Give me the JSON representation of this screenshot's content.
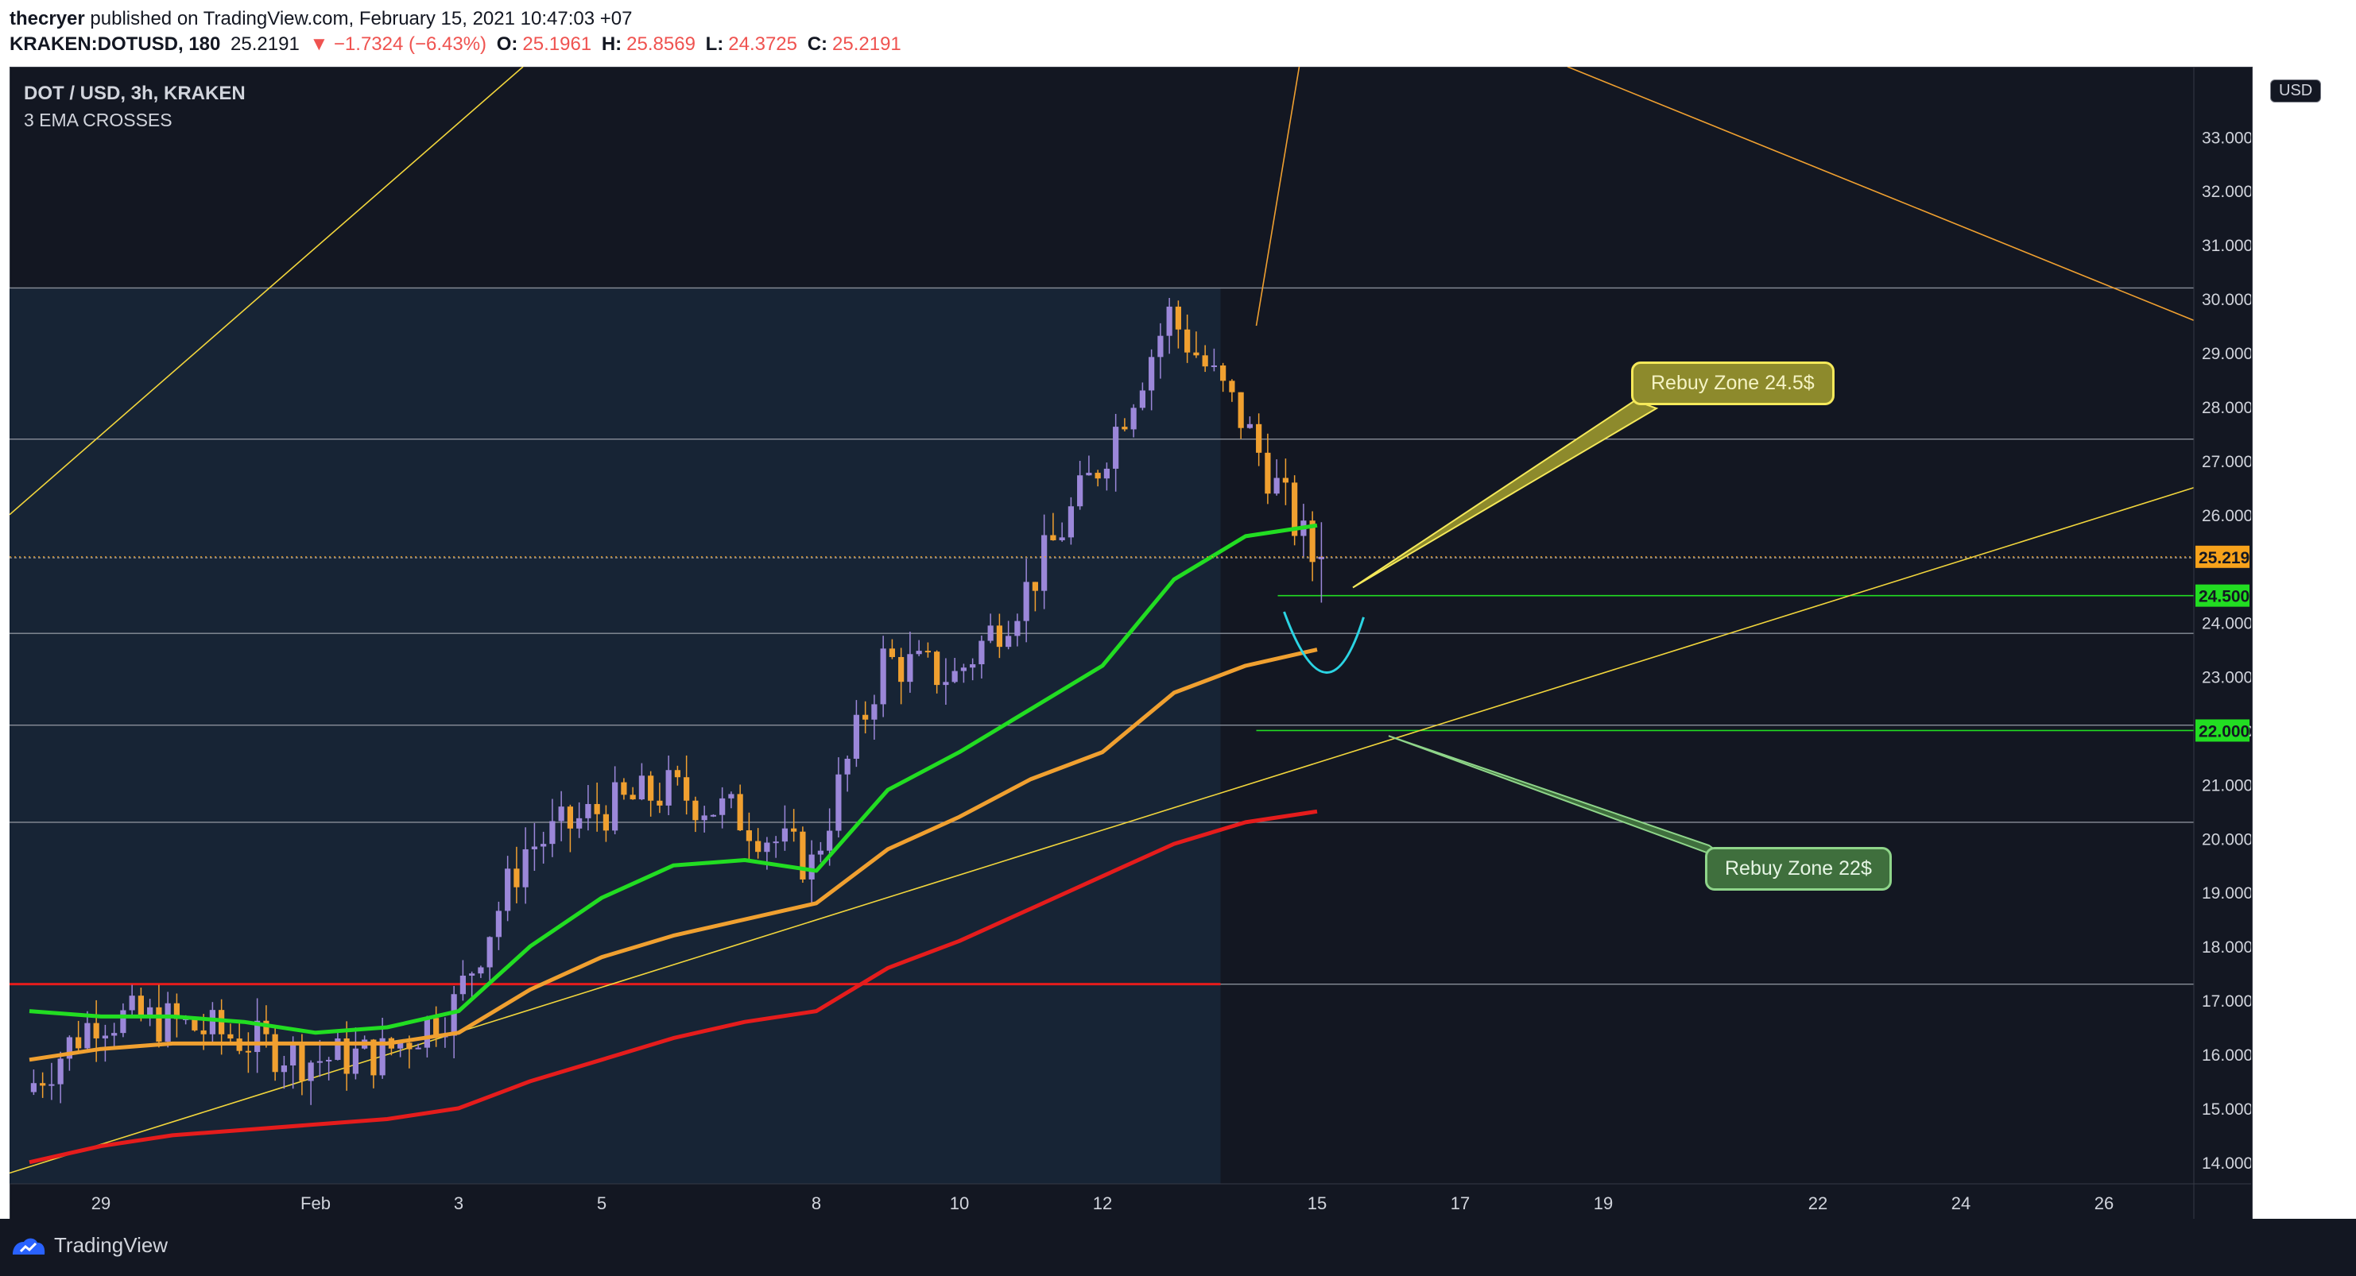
{
  "header": {
    "publisher": "thecryer",
    "published_text": "published on TradingView.com, February 15, 2021 10:47:03 +07",
    "symbol": "KRAKEN:DOTUSD, 180",
    "last": "25.2191",
    "change": "▼ −1.7324 (−6.43%)",
    "o_label": "O:",
    "o_val": "25.1961",
    "h_label": "H:",
    "h_val": "25.8569",
    "l_label": "L:",
    "l_val": "24.3725",
    "c_label": "C:",
    "c_val": "25.2191"
  },
  "legend": {
    "title": "DOT / USD, 3h, KRAKEN",
    "indicator": "3 EMA CROSSES"
  },
  "currency": "USD",
  "footer": {
    "brand": "TradingView"
  },
  "annotations": [
    {
      "text": "Rebuy Zone 24.5$",
      "target_price": 24.5
    },
    {
      "text": "Rebuy Zone 22$",
      "target_price": 22.0
    }
  ],
  "colors": {
    "background": "#131722",
    "bull": "#9b87d9",
    "bear": "#f0a030",
    "ema_fast": "#22dd22",
    "ema_mid": "#f0a030",
    "ema_slow": "#e51c1c",
    "trend_yellow": "#f2d63c",
    "trend_orange": "#f0a030",
    "hline": "#8a8f9a",
    "green_level": "#22dd22",
    "last_price": "#f7a21b"
  },
  "chart_data": {
    "type": "candlestick",
    "title": "DOT / USD, 3h, KRAKEN",
    "ylim": [
      13.6,
      34.3
    ],
    "yticks": [
      14,
      15,
      16,
      17,
      18,
      19,
      20,
      21,
      22,
      23,
      24,
      25,
      26,
      27,
      28,
      29,
      30,
      31,
      32,
      33
    ],
    "ytick_labels": [
      "14.0000",
      "15.0000",
      "16.0000",
      "17.0000",
      "18.0000",
      "19.0000",
      "20.0000",
      "21.0000",
      "22.0000",
      "23.0000",
      "24.0000",
      "",
      "26.0000",
      "27.0000",
      "28.0000",
      "29.0000",
      "30.0000",
      "31.0000",
      "32.0000",
      "33.0000"
    ],
    "xlim": [
      "2021-01-28T12:00",
      "2021-01-28T12:00"
    ],
    "x_start": "2021-01-28",
    "xtick_labels": [
      {
        "label": "29",
        "date": "2021-01-29"
      },
      {
        "label": "Feb",
        "date": "2021-02-01"
      },
      {
        "label": "3",
        "date": "2021-02-03"
      },
      {
        "label": "5",
        "date": "2021-02-05"
      },
      {
        "label": "8",
        "date": "2021-02-08"
      },
      {
        "label": "10",
        "date": "2021-02-10"
      },
      {
        "label": "12",
        "date": "2021-02-12"
      },
      {
        "label": "15",
        "date": "2021-02-15"
      },
      {
        "label": "17",
        "date": "2021-02-17"
      },
      {
        "label": "19",
        "date": "2021-02-19"
      },
      {
        "label": "22",
        "date": "2021-02-22"
      },
      {
        "label": "24",
        "date": "2021-02-24"
      },
      {
        "label": "26",
        "date": "2021-02-26"
      }
    ],
    "price_anchor": [
      {
        "date": "2021-01-28",
        "close": 15.3
      },
      {
        "date": "2021-01-29",
        "close": 16.7
      },
      {
        "date": "2021-01-30",
        "close": 16.6
      },
      {
        "date": "2021-01-31",
        "close": 16.3
      },
      {
        "date": "2021-02-01",
        "close": 15.9
      },
      {
        "date": "2021-02-02",
        "close": 16.0
      },
      {
        "date": "2021-02-03",
        "close": 16.9
      },
      {
        "date": "2021-02-04",
        "close": 19.8
      },
      {
        "date": "2021-02-05",
        "close": 20.5
      },
      {
        "date": "2021-02-06",
        "close": 20.9
      },
      {
        "date": "2021-02-07",
        "close": 20.4
      },
      {
        "date": "2021-02-08",
        "close": 19.5
      },
      {
        "date": "2021-02-09",
        "close": 23.3
      },
      {
        "date": "2021-02-10",
        "close": 23.0
      },
      {
        "date": "2021-02-11",
        "close": 24.6
      },
      {
        "date": "2021-02-12",
        "close": 26.9
      },
      {
        "date": "2021-02-13",
        "close": 29.7
      },
      {
        "date": "2021-02-14",
        "close": 27.8
      },
      {
        "date": "2021-02-15",
        "close": 25.2
      }
    ],
    "ema_fast": [
      [
        0,
        16.8
      ],
      [
        1,
        16.7
      ],
      [
        2,
        16.7
      ],
      [
        3,
        16.6
      ],
      [
        4,
        16.4
      ],
      [
        5,
        16.5
      ],
      [
        6,
        16.8
      ],
      [
        7,
        18.0
      ],
      [
        8,
        18.9
      ],
      [
        9,
        19.5
      ],
      [
        10,
        19.6
      ],
      [
        11,
        19.4
      ],
      [
        12,
        20.9
      ],
      [
        13,
        21.6
      ],
      [
        14,
        22.4
      ],
      [
        15,
        23.2
      ],
      [
        16,
        24.8
      ],
      [
        17,
        25.6
      ],
      [
        18,
        25.8
      ]
    ],
    "ema_mid": [
      [
        0,
        15.9
      ],
      [
        1,
        16.1
      ],
      [
        2,
        16.2
      ],
      [
        3,
        16.2
      ],
      [
        4,
        16.2
      ],
      [
        5,
        16.2
      ],
      [
        6,
        16.4
      ],
      [
        7,
        17.2
      ],
      [
        8,
        17.8
      ],
      [
        9,
        18.2
      ],
      [
        10,
        18.5
      ],
      [
        11,
        18.8
      ],
      [
        12,
        19.8
      ],
      [
        13,
        20.4
      ],
      [
        14,
        21.1
      ],
      [
        15,
        21.6
      ],
      [
        16,
        22.7
      ],
      [
        17,
        23.2
      ],
      [
        18,
        23.5
      ]
    ],
    "ema_slow": [
      [
        0,
        14.0
      ],
      [
        1,
        14.3
      ],
      [
        2,
        14.5
      ],
      [
        3,
        14.6
      ],
      [
        4,
        14.7
      ],
      [
        5,
        14.8
      ],
      [
        6,
        15.0
      ],
      [
        7,
        15.5
      ],
      [
        8,
        15.9
      ],
      [
        9,
        16.3
      ],
      [
        10,
        16.6
      ],
      [
        11,
        16.8
      ],
      [
        12,
        17.6
      ],
      [
        13,
        18.1
      ],
      [
        14,
        18.7
      ],
      [
        15,
        19.3
      ],
      [
        16,
        19.9
      ],
      [
        17,
        20.3
      ],
      [
        18,
        20.5
      ]
    ],
    "horizontal_levels": [
      17.3,
      20.3,
      22.1,
      23.8,
      25.2,
      27.4,
      30.2
    ],
    "green_levels": [
      24.5,
      22.0
    ],
    "last_price": 25.2191,
    "price_labels": [
      {
        "text": "25.2191",
        "price": 25.2191,
        "color": "#f7a21b"
      },
      {
        "text": "24.5000",
        "price": 24.5,
        "color": "#22dd22"
      },
      {
        "text": "22.0000",
        "price": 22.0,
        "color": "#22dd22"
      }
    ]
  }
}
